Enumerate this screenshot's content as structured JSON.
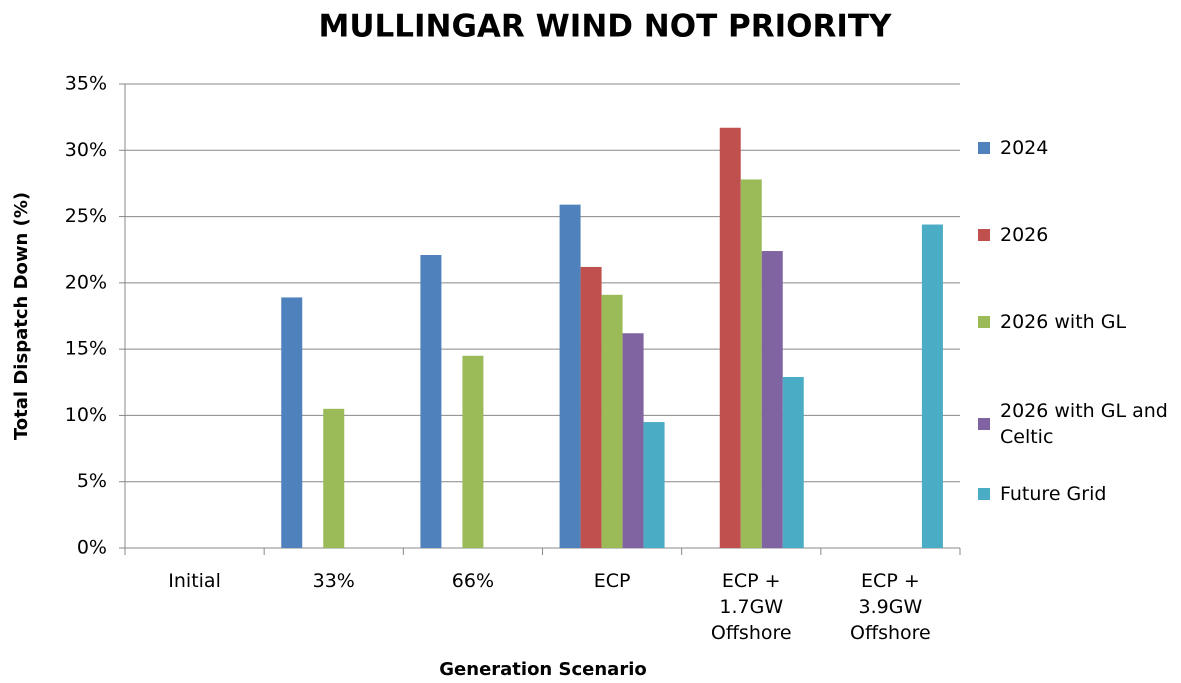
{
  "chart_data": {
    "type": "bar",
    "title": "MULLINGAR WIND NOT PRIORITY",
    "y_label": "Total Dispatch Down (%)",
    "x_label": "Generation Scenario",
    "categories": [
      "Initial",
      "33%",
      "66%",
      "ECP",
      "ECP + 1.7GW Offshore",
      "ECP + 3.9GW Offshore"
    ],
    "series": [
      {
        "name": "2024",
        "color": "#4f81bd",
        "values": [
          0,
          18.9,
          22.1,
          25.9,
          0,
          0
        ]
      },
      {
        "name": "2026",
        "color": "#c0504d",
        "values": [
          0,
          0,
          0,
          21.2,
          31.7,
          0
        ]
      },
      {
        "name": "2026 with GL",
        "color": "#9bbb59",
        "values": [
          0,
          10.5,
          14.5,
          19.1,
          27.8,
          0
        ]
      },
      {
        "name": "2026 with GL and Celtic",
        "color": "#8064a2",
        "values": [
          0,
          0,
          0,
          16.2,
          22.4,
          0
        ]
      },
      {
        "name": "Future Grid",
        "color": "#4bacc6",
        "values": [
          0,
          0,
          0,
          9.5,
          12.9,
          24.4
        ]
      }
    ],
    "ylim": [
      0,
      35
    ],
    "yticks": [
      {
        "value": 0,
        "label": "0%"
      },
      {
        "value": 5,
        "label": "5%"
      },
      {
        "value": 10,
        "label": "10%"
      },
      {
        "value": 15,
        "label": "15%"
      },
      {
        "value": 20,
        "label": "20%"
      },
      {
        "value": 25,
        "label": "25%"
      },
      {
        "value": 30,
        "label": "30%"
      },
      {
        "value": 35,
        "label": "35%"
      }
    ],
    "grid": true,
    "legend": "right"
  }
}
